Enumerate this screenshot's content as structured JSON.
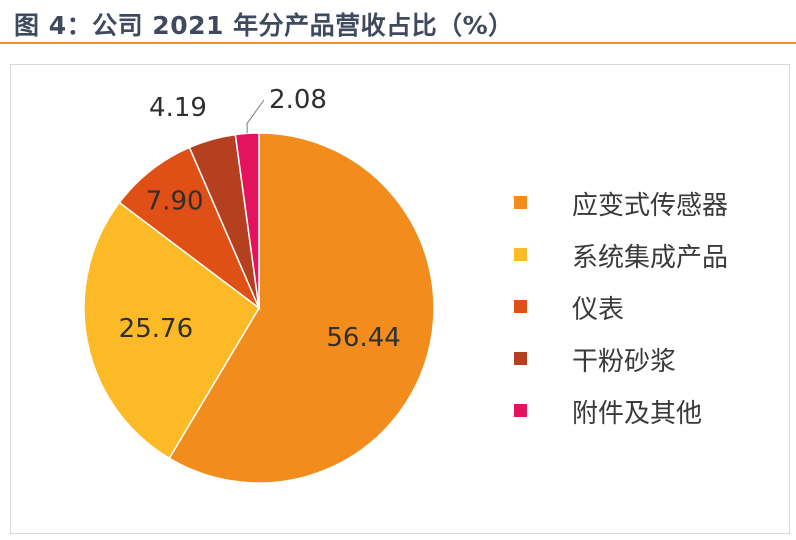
{
  "header": {
    "title": "图 4：公司 2021 年分产品营收占比（%）"
  },
  "chart_data": {
    "type": "pie",
    "title": "图 4：公司 2021 年分产品营收占比（%）",
    "unit": "%",
    "categories": [
      "应变式传感器",
      "系统集成产品",
      "仪表",
      "干粉砂浆",
      "附件及其他"
    ],
    "values": [
      56.44,
      25.76,
      7.9,
      4.19,
      2.08
    ],
    "value_labels": [
      "56.44",
      "25.76",
      "7.90",
      "4.19",
      "2.08"
    ],
    "colors": [
      "#f28c1c",
      "#fbba26",
      "#e04f16",
      "#b5401f",
      "#e3135e"
    ],
    "legend_position": "right",
    "start_angle": "12 o'clock",
    "direction": "clockwise"
  }
}
